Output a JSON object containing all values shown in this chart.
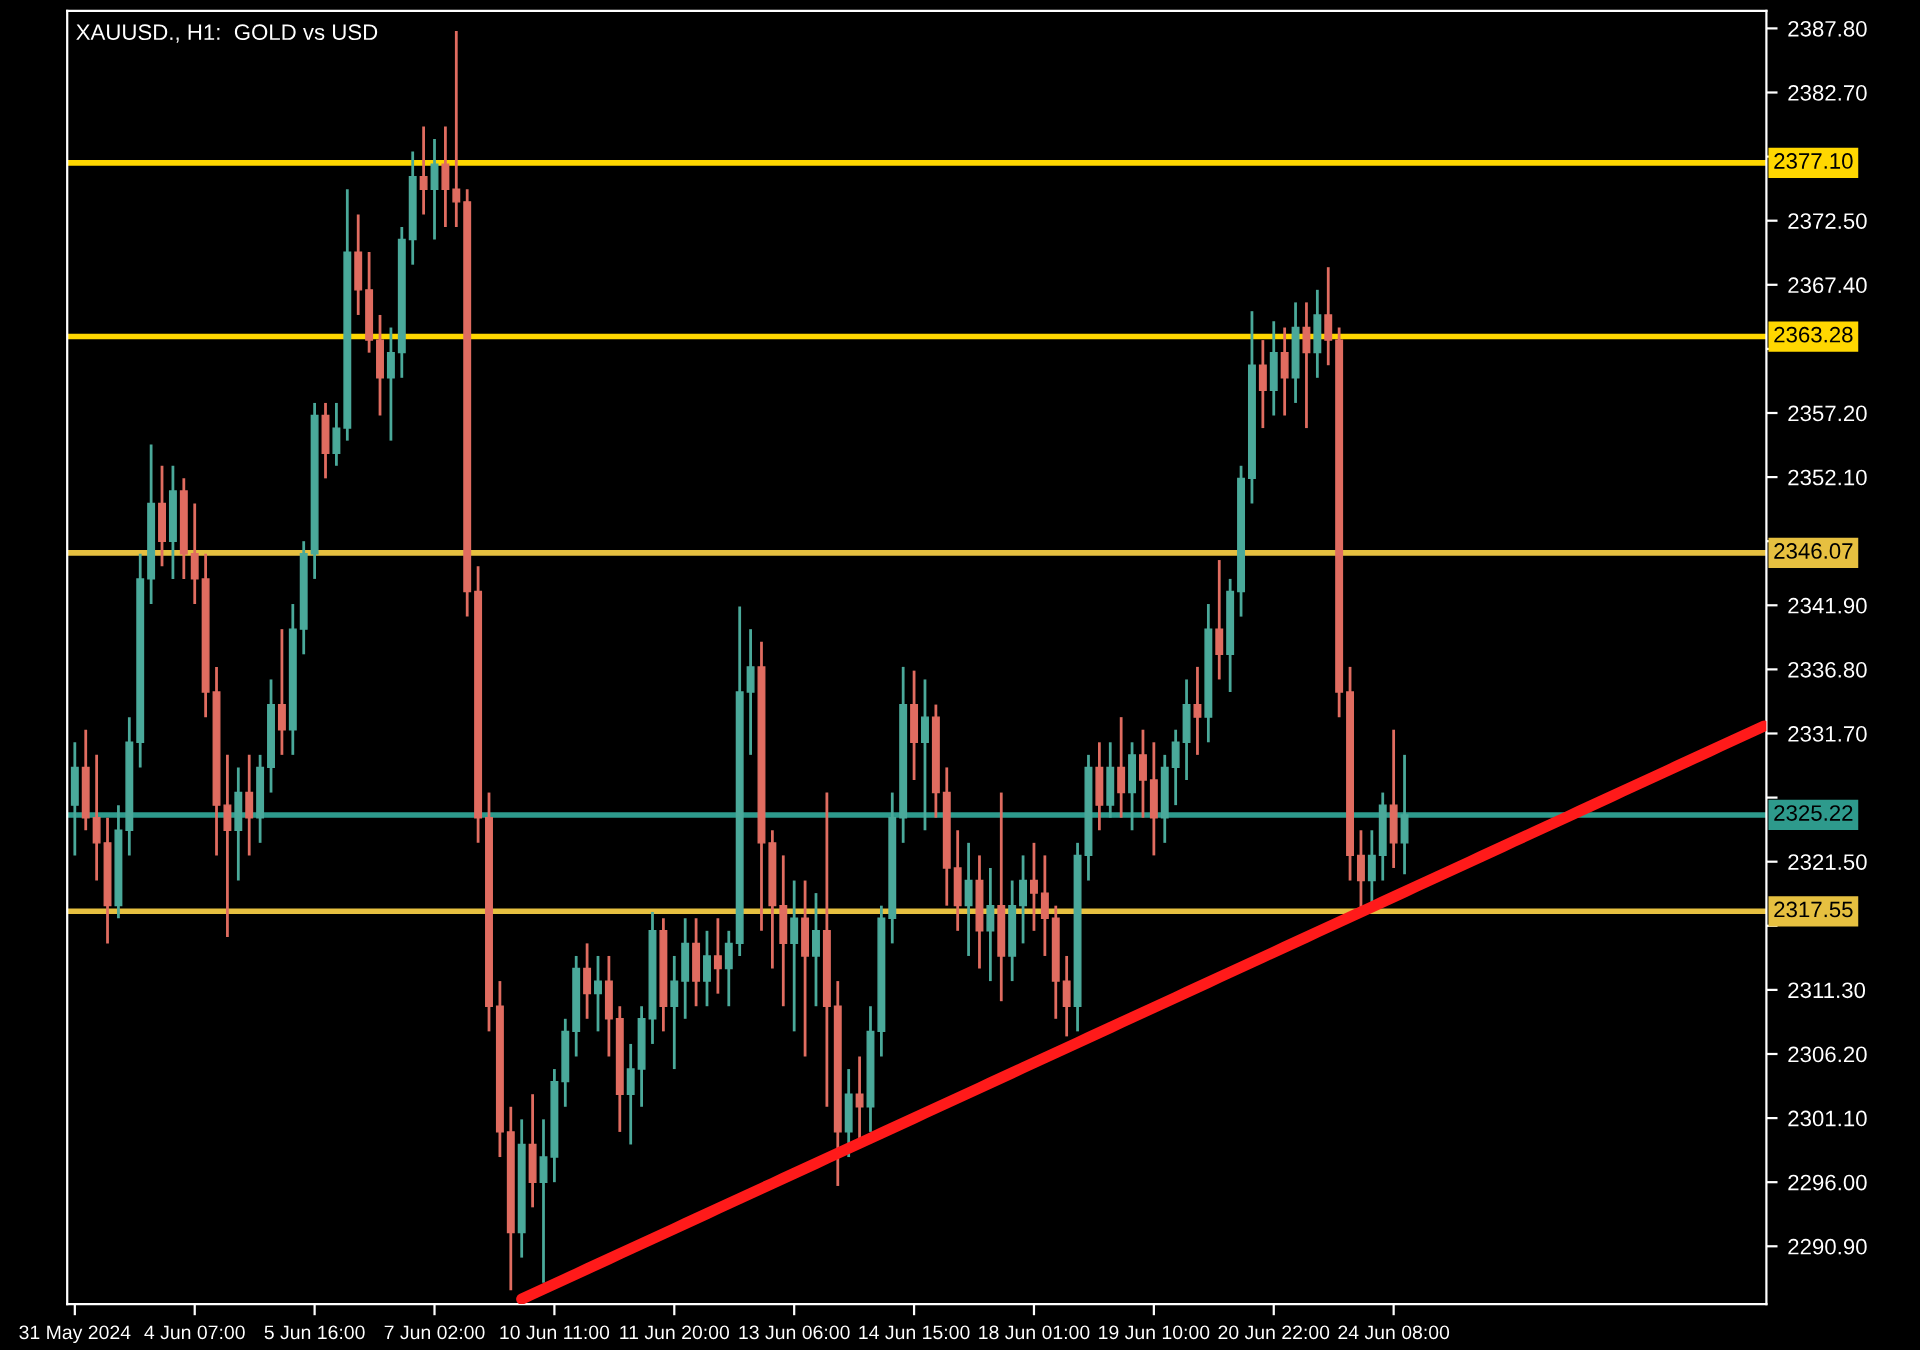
{
  "chart_data": {
    "type": "candlestick",
    "title": "XAUUSD., H1:  GOLD vs USD",
    "categories": [
      "31 May 2024",
      null,
      null,
      null,
      null,
      null,
      null,
      null,
      null,
      null,
      null,
      "4 Jun 07:00",
      null,
      null,
      null,
      null,
      null,
      null,
      null,
      null,
      null,
      null,
      "5 Jun 16:00",
      null,
      null,
      null,
      null,
      null,
      null,
      null,
      null,
      null,
      null,
      "7 Jun 02:00",
      null,
      null,
      null,
      null,
      null,
      null,
      null,
      null,
      null,
      null,
      "10 Jun 11:00",
      null,
      null,
      null,
      null,
      null,
      null,
      null,
      null,
      null,
      null,
      "11 Jun 20:00",
      null,
      null,
      null,
      null,
      null,
      null,
      null,
      null,
      null,
      null,
      "13 Jun 06:00",
      null,
      null,
      null,
      null,
      null,
      null,
      null,
      null,
      null,
      null,
      "14 Jun 15:00",
      null,
      null,
      null,
      null,
      null,
      null,
      null,
      null,
      null,
      null,
      "18 Jun 01:00",
      null,
      null,
      null,
      null,
      null,
      null,
      null,
      null,
      null,
      null,
      "19 Jun 10:00",
      null,
      null,
      null,
      null,
      null,
      null,
      null,
      null,
      null,
      null,
      "20 Jun 22:00",
      null,
      null,
      null,
      null,
      null,
      null,
      null,
      null,
      null,
      null,
      "24 Jun 08:00",
      null,
      null,
      null,
      null,
      null,
      null,
      null,
      null,
      null,
      null,
      null,
      null,
      null,
      null,
      null,
      null,
      null,
      null,
      null,
      null,
      null,
      null,
      null,
      null,
      null,
      null,
      null,
      null,
      null,
      null,
      null,
      null,
      null,
      null
    ],
    "ohlc": [
      [
        2326,
        2331,
        2322,
        2329
      ],
      [
        2329,
        2332,
        2324,
        2325
      ],
      [
        2325,
        2330,
        2320,
        2323
      ],
      [
        2323,
        2325,
        2315,
        2318
      ],
      [
        2318,
        2326,
        2317,
        2324
      ],
      [
        2324,
        2333,
        2322,
        2331
      ],
      [
        2331,
        2346,
        2329,
        2344
      ],
      [
        2344,
        2354.7,
        2342,
        2350
      ],
      [
        2350,
        2353,
        2345,
        2347
      ],
      [
        2347,
        2353,
        2344,
        2351
      ],
      [
        2351,
        2352,
        2344,
        2346
      ],
      [
        2346,
        2350,
        2342,
        2344
      ],
      [
        2344,
        2346,
        2333,
        2335
      ],
      [
        2335,
        2337,
        2322,
        2326
      ],
      [
        2326,
        2330,
        2315.5,
        2324
      ],
      [
        2324,
        2329,
        2320,
        2327
      ],
      [
        2327,
        2330,
        2322,
        2325
      ],
      [
        2325,
        2330,
        2323,
        2329
      ],
      [
        2329,
        2336,
        2327,
        2334
      ],
      [
        2334,
        2340,
        2330,
        2332
      ],
      [
        2332,
        2342,
        2330,
        2340
      ],
      [
        2340,
        2347,
        2338,
        2346
      ],
      [
        2346,
        2358,
        2344,
        2357
      ],
      [
        2357,
        2358,
        2352,
        2354
      ],
      [
        2354,
        2358,
        2353,
        2356
      ],
      [
        2356,
        2375,
        2355,
        2370
      ],
      [
        2370,
        2373,
        2365,
        2367
      ],
      [
        2367,
        2370,
        2362,
        2363
      ],
      [
        2363,
        2365,
        2357,
        2360
      ],
      [
        2360,
        2364,
        2355,
        2362
      ],
      [
        2362,
        2372,
        2360,
        2371
      ],
      [
        2371,
        2378,
        2369,
        2376
      ],
      [
        2376,
        2380,
        2373,
        2375
      ],
      [
        2375,
        2379,
        2371,
        2377
      ],
      [
        2377,
        2380,
        2372,
        2375
      ],
      [
        2375,
        2387.6,
        2372,
        2374
      ],
      [
        2374,
        2375,
        2341,
        2343
      ],
      [
        2343,
        2345,
        2323,
        2325
      ],
      [
        2325,
        2327,
        2308,
        2310
      ],
      [
        2310,
        2312,
        2298,
        2300
      ],
      [
        2300,
        2302,
        2287.4,
        2292
      ],
      [
        2292,
        2301,
        2290,
        2299
      ],
      [
        2299,
        2303,
        2294,
        2296
      ],
      [
        2296,
        2301,
        2288,
        2298
      ],
      [
        2298,
        2305,
        2296,
        2304
      ],
      [
        2304,
        2309,
        2302,
        2308
      ],
      [
        2308,
        2314,
        2306,
        2313
      ],
      [
        2313,
        2315,
        2309,
        2311
      ],
      [
        2311,
        2314,
        2308,
        2312
      ],
      [
        2312,
        2314,
        2306,
        2309
      ],
      [
        2309,
        2310,
        2300,
        2303
      ],
      [
        2303,
        2307,
        2299,
        2305
      ],
      [
        2305,
        2310,
        2302,
        2309
      ],
      [
        2309,
        2317.5,
        2307,
        2316
      ],
      [
        2316,
        2317,
        2308,
        2310
      ],
      [
        2310,
        2314,
        2305,
        2312
      ],
      [
        2312,
        2317,
        2309,
        2315
      ],
      [
        2315,
        2317,
        2310,
        2312
      ],
      [
        2312,
        2316,
        2310,
        2314
      ],
      [
        2314,
        2317,
        2311,
        2313
      ],
      [
        2313,
        2316,
        2310,
        2315
      ],
      [
        2315,
        2341.8,
        2314,
        2335
      ],
      [
        2335,
        2340,
        2330,
        2337
      ],
      [
        2337,
        2339,
        2316,
        2323
      ],
      [
        2323,
        2324,
        2313,
        2318
      ],
      [
        2318,
        2322,
        2310,
        2315
      ],
      [
        2315,
        2320,
        2308,
        2317
      ],
      [
        2317,
        2320,
        2306,
        2314
      ],
      [
        2314,
        2319,
        2310,
        2316
      ],
      [
        2316,
        2327,
        2302,
        2310
      ],
      [
        2310,
        2312,
        2295.7,
        2300
      ],
      [
        2300,
        2305,
        2298,
        2303
      ],
      [
        2303,
        2306,
        2299,
        2302
      ],
      [
        2302,
        2310,
        2300,
        2308
      ],
      [
        2308,
        2318,
        2306,
        2317
      ],
      [
        2317,
        2327,
        2315,
        2325
      ],
      [
        2325,
        2337,
        2323,
        2334
      ],
      [
        2334,
        2336.7,
        2328,
        2331
      ],
      [
        2331,
        2336,
        2324,
        2333
      ],
      [
        2333,
        2334,
        2325,
        2327
      ],
      [
        2327,
        2329,
        2318,
        2321
      ],
      [
        2321,
        2324,
        2316,
        2318
      ],
      [
        2318,
        2323,
        2314,
        2320
      ],
      [
        2320,
        2322,
        2313,
        2316
      ],
      [
        2316,
        2321,
        2312,
        2318
      ],
      [
        2318,
        2327,
        2310.4,
        2314
      ],
      [
        2314,
        2320,
        2312,
        2318
      ],
      [
        2318,
        2322,
        2315,
        2320
      ],
      [
        2320,
        2323,
        2316,
        2319
      ],
      [
        2319,
        2322,
        2314,
        2317
      ],
      [
        2317,
        2318,
        2309,
        2312
      ],
      [
        2312,
        2314,
        2307.6,
        2310
      ],
      [
        2310,
        2323,
        2308,
        2322
      ],
      [
        2322,
        2330,
        2320,
        2329
      ],
      [
        2329,
        2331,
        2324,
        2326
      ],
      [
        2326,
        2331,
        2325,
        2329
      ],
      [
        2329,
        2333,
        2325,
        2327
      ],
      [
        2327,
        2331,
        2324,
        2330
      ],
      [
        2330,
        2332,
        2325,
        2328
      ],
      [
        2328,
        2331,
        2322,
        2325
      ],
      [
        2325,
        2330,
        2323,
        2329
      ],
      [
        2329,
        2332,
        2326,
        2331
      ],
      [
        2331,
        2336,
        2328,
        2334
      ],
      [
        2334,
        2337,
        2330,
        2333
      ],
      [
        2333,
        2342,
        2331,
        2340
      ],
      [
        2340,
        2345.5,
        2336,
        2338
      ],
      [
        2338,
        2344,
        2335,
        2343
      ],
      [
        2343,
        2353,
        2341,
        2352
      ],
      [
        2352,
        2365.3,
        2350,
        2361
      ],
      [
        2361,
        2363,
        2356,
        2359
      ],
      [
        2359,
        2364.5,
        2357,
        2362
      ],
      [
        2362,
        2364,
        2357,
        2360
      ],
      [
        2360,
        2366,
        2358,
        2364
      ],
      [
        2364,
        2366,
        2356,
        2362
      ],
      [
        2362,
        2367,
        2360,
        2365
      ],
      [
        2365,
        2368.8,
        2361,
        2363
      ],
      [
        2363,
        2364,
        2333,
        2335
      ],
      [
        2335,
        2337,
        2320,
        2322
      ],
      [
        2322,
        2324,
        2317.6,
        2320
      ],
      [
        2320,
        2324,
        2318,
        2322
      ],
      [
        2322,
        2327,
        2320,
        2326
      ],
      [
        2326,
        2332,
        2321,
        2323
      ],
      [
        2323,
        2330,
        2320.5,
        2325.22
      ],
      null,
      null,
      null,
      null,
      null,
      null,
      null,
      null,
      null,
      null,
      null,
      null,
      null,
      null,
      null,
      null,
      null,
      null,
      null,
      null,
      null,
      null,
      null,
      null,
      null,
      null,
      null,
      null,
      null,
      null,
      null,
      null,
      null
    ],
    "colors": [
      "#4aa99a",
      "#e06c60",
      "#e06c60",
      "#e06c60",
      "#4aa99a",
      "#4aa99a",
      "#4aa99a",
      "#4aa99a",
      "#e06c60",
      "#4aa99a",
      "#e06c60",
      "#e06c60",
      "#e06c60",
      "#e06c60",
      "#e06c60",
      "#4aa99a",
      "#e06c60",
      "#4aa99a",
      "#4aa99a",
      "#e06c60",
      "#4aa99a",
      "#4aa99a",
      "#4aa99a",
      "#e06c60",
      "#4aa99a",
      "#4aa99a",
      "#e06c60",
      "#e06c60",
      "#e06c60",
      "#4aa99a",
      "#4aa99a",
      "#4aa99a",
      "#e06c60",
      "#4aa99a",
      "#e06c60",
      "#e06c60",
      "#e06c60",
      "#e06c60",
      "#e06c60",
      "#e06c60",
      "#e06c60",
      "#4aa99a",
      "#e06c60",
      "#4aa99a",
      "#4aa99a",
      "#4aa99a",
      "#4aa99a",
      "#e06c60",
      "#4aa99a",
      "#e06c60",
      "#e06c60",
      "#4aa99a",
      "#4aa99a",
      "#4aa99a",
      "#e06c60",
      "#4aa99a",
      "#4aa99a",
      "#e06c60",
      "#4aa99a",
      "#e06c60",
      "#4aa99a",
      "#4aa99a",
      "#4aa99a",
      "#e06c60",
      "#e06c60",
      "#e06c60",
      "#4aa99a",
      "#e06c60",
      "#4aa99a",
      "#e06c60",
      "#e06c60",
      "#4aa99a",
      "#e06c60",
      "#4aa99a",
      "#4aa99a",
      "#4aa99a",
      "#4aa99a",
      "#e06c60",
      "#4aa99a",
      "#e06c60",
      "#e06c60",
      "#e06c60",
      "#4aa99a",
      "#e06c60",
      "#4aa99a",
      "#e06c60",
      "#4aa99a",
      "#4aa99a",
      "#e06c60",
      "#e06c60",
      "#e06c60",
      "#e06c60",
      "#4aa99a",
      "#4aa99a",
      "#e06c60",
      "#4aa99a",
      "#e06c60",
      "#4aa99a",
      "#e06c60",
      "#e06c60",
      "#4aa99a",
      "#4aa99a",
      "#4aa99a",
      "#e06c60",
      "#4aa99a",
      "#e06c60",
      "#4aa99a",
      "#4aa99a",
      "#4aa99a",
      "#e06c60",
      "#4aa99a",
      "#e06c60",
      "#4aa99a",
      "#e06c60",
      "#4aa99a",
      "#e06c60",
      "#e06c60",
      "#e06c60",
      "#e06c60",
      "#4aa99a",
      "#4aa99a",
      "#e06c60",
      "#4aa99a",
      null,
      null,
      null,
      null,
      null,
      null,
      null,
      null,
      null,
      null,
      null,
      null,
      null,
      null,
      null,
      null,
      null,
      null,
      null,
      null,
      null,
      null,
      null,
      null,
      null,
      null,
      null,
      null,
      null,
      null,
      null,
      null,
      null
    ],
    "ylim": [
      2286.3,
      2389.2
    ],
    "yticks": [
      {
        "value": 2290.9,
        "label": "2290.90"
      },
      {
        "value": 2296,
        "label": "2296.00"
      },
      {
        "value": 2301.1,
        "label": "2301.10"
      },
      {
        "value": 2306.2,
        "label": "2306.20"
      },
      {
        "value": 2311.3,
        "label": "2311.30"
      },
      {
        "value": 2316.4,
        "label": null
      },
      {
        "value": 2321.5,
        "label": "2321.50"
      },
      {
        "value": 2326.6,
        "label": null
      },
      {
        "value": 2331.7,
        "label": "2331.70"
      },
      {
        "value": 2336.8,
        "label": "2336.80"
      },
      {
        "value": 2341.9,
        "label": "2341.90"
      },
      {
        "value": 2347,
        "label": null
      },
      {
        "value": 2352.1,
        "label": "2352.10"
      },
      {
        "value": 2357.2,
        "label": "2357.20"
      },
      {
        "value": 2362.3,
        "label": null
      },
      {
        "value": 2367.4,
        "label": "2367.40"
      },
      {
        "value": 2372.5,
        "label": "2372.50"
      },
      {
        "value": 2377.6,
        "label": null
      },
      {
        "value": 2382.7,
        "label": "2382.70"
      },
      {
        "value": 2387.8,
        "label": "2387.80"
      }
    ],
    "ref_lines": [
      {
        "axis": "y",
        "value": 2377.1,
        "label": "2377.10",
        "color": "#ffd700"
      },
      {
        "axis": "y",
        "value": 2363.28,
        "label": "2363.28",
        "color": "#ffd700"
      },
      {
        "axis": "y",
        "value": 2346.07,
        "label": "2346.07",
        "color": "#e6c040"
      },
      {
        "axis": "y",
        "value": 2325.22,
        "label": "2325.22",
        "color": "#2e9a8c"
      },
      {
        "axis": "y",
        "value": 2317.55,
        "label": "2317.55",
        "color": "#e6c040"
      }
    ],
    "series": [
      {
        "type": "line",
        "color": "#ff1a1a",
        "values": [
          null,
          null,
          null,
          null,
          null,
          null,
          null,
          null,
          null,
          null,
          null,
          null,
          null,
          null,
          null,
          null,
          null,
          null,
          null,
          null,
          null,
          null,
          null,
          null,
          null,
          null,
          null,
          null,
          null,
          null,
          null,
          null,
          null,
          null,
          null,
          null,
          null,
          null,
          null,
          null,
          null,
          2286.7,
          2287.1,
          2287.5,
          2287.9,
          2288.3,
          2288.7,
          2289.1,
          2289.5,
          2289.9,
          2290.3,
          2290.7,
          2291.1,
          2291.5,
          2291.9,
          2292.3,
          2292.7,
          2293.1,
          2293.5,
          2293.9,
          2294.3,
          2294.7,
          2295.1,
          2295.5,
          2295.9,
          2296.3,
          2296.7,
          2297.1,
          2297.5,
          2297.9,
          2298.3,
          2298.7,
          2299.1,
          2299.5,
          2299.9,
          2300.3,
          2300.7,
          2301.1,
          2301.5,
          2301.9,
          2302.3,
          2302.7,
          2303.1,
          2303.5,
          2303.9,
          2304.3,
          2304.7,
          2305.1,
          2305.5,
          2305.9,
          2306.3,
          2306.7,
          2307.1,
          2307.5,
          2307.9,
          2308.3,
          2308.7,
          2309.1,
          2309.5,
          2309.9,
          2310.3,
          2310.7,
          2311.1,
          2311.5,
          2311.9,
          2312.3,
          2312.7,
          2313.1,
          2313.5,
          2313.9,
          2314.3,
          2314.7,
          2315.1,
          2315.5,
          2315.9,
          2316.3,
          2316.7,
          2317.1,
          2317.5,
          2317.9,
          2318.3,
          2318.7,
          2319.1,
          2319.5,
          2319.9,
          2320.3,
          2320.7,
          2321.1,
          2321.5,
          2321.9,
          2322.3,
          2322.7,
          2323.1,
          2323.5,
          2323.9,
          2324.3,
          2324.7,
          2325.1,
          2325.5,
          2325.9,
          2326.3,
          2326.7,
          2327.1,
          2327.5,
          2327.9,
          2328.3,
          2328.7,
          2329.1,
          2329.5,
          2329.9,
          2330.3,
          2330.7,
          2331.1,
          2331.5,
          2331.9,
          2332.3
        ]
      }
    ]
  }
}
